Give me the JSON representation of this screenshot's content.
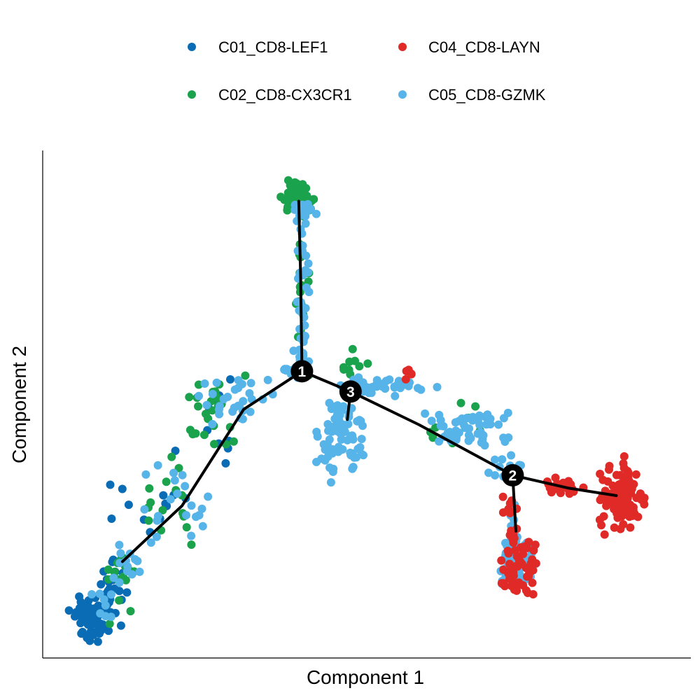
{
  "chart_data": {
    "type": "scatter",
    "title": "",
    "xlabel": "Component 1",
    "ylabel": "Component 2",
    "xlim": [
      0,
      100
    ],
    "ylim": [
      0,
      100
    ],
    "grid": false,
    "legend_position": "top",
    "series": [
      {
        "name": "C01_CD8-LEF1",
        "color": "#0a6cb4"
      },
      {
        "name": "C02_CD8-CX3CR1",
        "color": "#1aa24c"
      },
      {
        "name": "C04_CD8-LAYN",
        "color": "#e02a27"
      },
      {
        "name": "C05_CD8-GZMK",
        "color": "#56b4e9"
      }
    ],
    "trajectory": {
      "color": "#000000",
      "edges": [
        [
          [
            12.3,
            19.0
          ],
          [
            21.5,
            30.0
          ],
          [
            31.0,
            49.0
          ],
          [
            40.0,
            56.5
          ]
        ],
        [
          [
            40.0,
            56.5
          ],
          [
            39.8,
            75.0
          ],
          [
            39.5,
            90.0
          ]
        ],
        [
          [
            40.0,
            56.5
          ],
          [
            47.5,
            52.5
          ]
        ],
        [
          [
            47.5,
            52.5
          ],
          [
            47.0,
            47.0
          ]
        ],
        [
          [
            47.5,
            52.5
          ],
          [
            58.0,
            46.0
          ],
          [
            72.5,
            36.0
          ]
        ],
        [
          [
            72.5,
            36.0
          ],
          [
            73.0,
            25.0
          ]
        ],
        [
          [
            72.5,
            36.0
          ],
          [
            81.0,
            33.5
          ],
          [
            88.5,
            32.0
          ]
        ]
      ],
      "branch_points": [
        {
          "label": "1",
          "x": 40.0,
          "y": 56.5
        },
        {
          "label": "2",
          "x": 72.5,
          "y": 36.0
        },
        {
          "label": "3",
          "x": 47.5,
          "y": 52.5
        }
      ]
    },
    "clusters": [
      {
        "series": 0,
        "x": 7.5,
        "y": 7.5,
        "sx": 1.3,
        "sy": 2.0,
        "n": 70
      },
      {
        "series": 0,
        "x": 10.5,
        "y": 14.0,
        "sx": 1.2,
        "sy": 3.0,
        "n": 25
      },
      {
        "series": 0,
        "x": 17.0,
        "y": 31.0,
        "sx": 3.0,
        "sy": 3.5,
        "n": 12
      },
      {
        "series": 0,
        "x": 27.0,
        "y": 45.0,
        "sx": 2.5,
        "sy": 4.0,
        "n": 10
      },
      {
        "series": 1,
        "x": 12.0,
        "y": 16.0,
        "sx": 1.5,
        "sy": 4.0,
        "n": 15
      },
      {
        "series": 1,
        "x": 19.0,
        "y": 31.0,
        "sx": 2.5,
        "sy": 4.0,
        "n": 15
      },
      {
        "series": 1,
        "x": 28.0,
        "y": 47.0,
        "sx": 3.0,
        "sy": 3.5,
        "n": 25
      },
      {
        "series": 1,
        "x": 39.5,
        "y": 90.5,
        "sx": 1.1,
        "sy": 1.4,
        "n": 80
      },
      {
        "series": 1,
        "x": 40.0,
        "y": 70.0,
        "sx": 0.5,
        "sy": 7.0,
        "n": 18
      },
      {
        "series": 1,
        "x": 48.0,
        "y": 56.5,
        "sx": 2.0,
        "sy": 2.0,
        "n": 10
      },
      {
        "series": 1,
        "x": 63.0,
        "y": 46.0,
        "sx": 2.5,
        "sy": 2.0,
        "n": 8
      },
      {
        "series": 3,
        "x": 9.0,
        "y": 12.0,
        "sx": 1.5,
        "sy": 3.0,
        "n": 10
      },
      {
        "series": 3,
        "x": 13.0,
        "y": 18.0,
        "sx": 1.5,
        "sy": 3.0,
        "n": 12
      },
      {
        "series": 3,
        "x": 20.0,
        "y": 30.0,
        "sx": 3.0,
        "sy": 4.0,
        "n": 20
      },
      {
        "series": 3,
        "x": 30.0,
        "y": 50.0,
        "sx": 3.0,
        "sy": 3.0,
        "n": 30
      },
      {
        "series": 3,
        "x": 40.2,
        "y": 88.0,
        "sx": 0.8,
        "sy": 1.0,
        "n": 15
      },
      {
        "series": 3,
        "x": 40.1,
        "y": 70.0,
        "sx": 0.6,
        "sy": 8.0,
        "n": 40
      },
      {
        "series": 3,
        "x": 38.5,
        "y": 56.5,
        "sx": 1.0,
        "sy": 0.6,
        "n": 12
      },
      {
        "series": 3,
        "x": 46.0,
        "y": 44.0,
        "sx": 1.5,
        "sy": 4.0,
        "n": 80
      },
      {
        "series": 3,
        "x": 53.0,
        "y": 53.5,
        "sx": 3.5,
        "sy": 1.0,
        "n": 40
      },
      {
        "series": 3,
        "x": 66.0,
        "y": 45.0,
        "sx": 3.5,
        "sy": 2.0,
        "n": 50
      },
      {
        "series": 3,
        "x": 72.0,
        "y": 37.0,
        "sx": 2.0,
        "sy": 1.5,
        "n": 15
      },
      {
        "series": 3,
        "x": 73.0,
        "y": 19.0,
        "sx": 1.2,
        "sy": 2.2,
        "n": 90
      },
      {
        "series": 3,
        "x": 72.5,
        "y": 28.0,
        "sx": 0.5,
        "sy": 3.0,
        "n": 10
      },
      {
        "series": 3,
        "x": 89.0,
        "y": 32.0,
        "sx": 0.8,
        "sy": 1.0,
        "n": 10
      },
      {
        "series": 2,
        "x": 89.5,
        "y": 31.5,
        "sx": 1.6,
        "sy": 2.8,
        "n": 120
      },
      {
        "series": 2,
        "x": 73.5,
        "y": 18.5,
        "sx": 1.5,
        "sy": 3.0,
        "n": 50
      },
      {
        "series": 2,
        "x": 72.5,
        "y": 27.5,
        "sx": 0.6,
        "sy": 2.5,
        "n": 12
      },
      {
        "series": 2,
        "x": 80.0,
        "y": 33.5,
        "sx": 2.5,
        "sy": 1.0,
        "n": 20
      },
      {
        "series": 2,
        "x": 57.0,
        "y": 55.5,
        "sx": 2.0,
        "sy": 1.5,
        "n": 5
      }
    ]
  }
}
